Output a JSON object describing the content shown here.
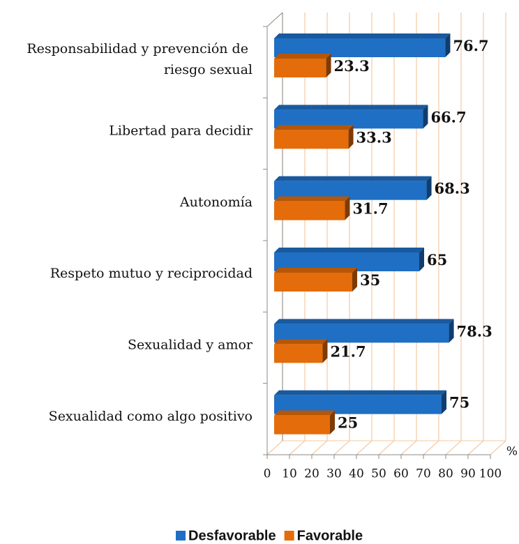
{
  "chart_data": {
    "type": "bar3d_horizontal",
    "categories": [
      "Responsabilidad y prevención de riesgo sexual",
      "Libertad para decidir",
      "Autonomía",
      "Respeto mutuo y reciprocidad",
      "Sexualidad y amor",
      "Sexualidad como algo positivo"
    ],
    "series": [
      {
        "name": "Desfavorable",
        "color": "#1f6fc5",
        "values": [
          76.7,
          66.7,
          68.3,
          65,
          78.3,
          75
        ]
      },
      {
        "name": "Favorable",
        "color": "#e46c0a",
        "values": [
          23.3,
          33.3,
          31.7,
          35,
          21.7,
          25
        ]
      }
    ],
    "xlabel": "%",
    "xlim": [
      0,
      100
    ],
    "xticks": [
      0,
      10,
      20,
      30,
      40,
      50,
      60,
      70,
      80,
      90,
      100
    ],
    "grid": true,
    "grid_color": "#f5c9a0",
    "legend": "bottom"
  }
}
